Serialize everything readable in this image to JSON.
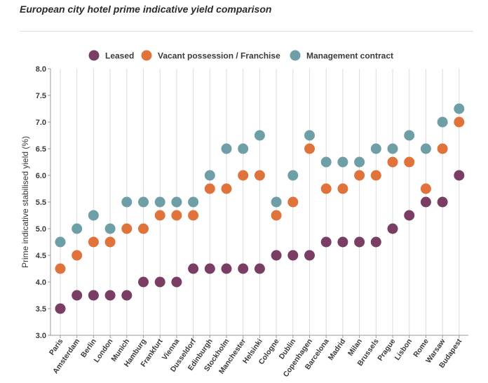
{
  "title": "European city hotel prime indicative yield comparison",
  "chart_data": {
    "type": "scatter",
    "title": "European city hotel prime indicative yield comparison",
    "xlabel": "",
    "ylabel": "Prime indicative stabilised yield (%)",
    "ylim": [
      3.0,
      8.0
    ],
    "yticks": [
      "3.0",
      "3.5",
      "4.0",
      "4.5",
      "5.0",
      "5.5",
      "6.0",
      "6.5",
      "7.0",
      "7.5",
      "8.0"
    ],
    "grid": "vertical",
    "legend": "top",
    "categories": [
      "Paris",
      "Amsterdam",
      "Berlin",
      "London",
      "Munich",
      "Hamburg",
      "Frankfurt",
      "Vienna",
      "Dusseldorf",
      "Edinburgh",
      "Stockholm",
      "Manchester",
      "Helsinki",
      "Cologne",
      "Dublin",
      "Copenhagen",
      "Barcelona",
      "Madrid",
      "Milan",
      "Brussels",
      "Prague",
      "Lisbon",
      "Rome",
      "Warsaw",
      "Budapest"
    ],
    "series": [
      {
        "name": "Leased",
        "color": "#7a3e64",
        "values": [
          3.5,
          3.75,
          3.75,
          3.75,
          3.75,
          4.0,
          4.0,
          4.0,
          4.25,
          4.25,
          4.25,
          4.25,
          4.25,
          4.5,
          4.5,
          4.5,
          4.75,
          4.75,
          4.75,
          4.75,
          5.0,
          5.25,
          5.5,
          5.5,
          6.0
        ]
      },
      {
        "name": "Vacant possession / Franchise",
        "color": "#e0733c",
        "values": [
          4.25,
          4.5,
          4.75,
          4.75,
          5.0,
          5.0,
          5.25,
          5.25,
          5.25,
          5.75,
          5.75,
          6.0,
          6.0,
          5.25,
          5.5,
          6.5,
          5.75,
          5.75,
          6.0,
          6.0,
          6.25,
          6.25,
          5.75,
          6.5,
          7.0
        ]
      },
      {
        "name": "Management contract",
        "color": "#6e9ea6",
        "values": [
          4.75,
          5.0,
          5.25,
          5.0,
          5.5,
          5.5,
          5.5,
          5.5,
          5.5,
          6.0,
          6.5,
          6.5,
          6.75,
          5.5,
          6.0,
          6.75,
          6.25,
          6.25,
          6.25,
          6.5,
          6.5,
          6.75,
          6.5,
          7.0,
          7.25
        ]
      }
    ]
  }
}
